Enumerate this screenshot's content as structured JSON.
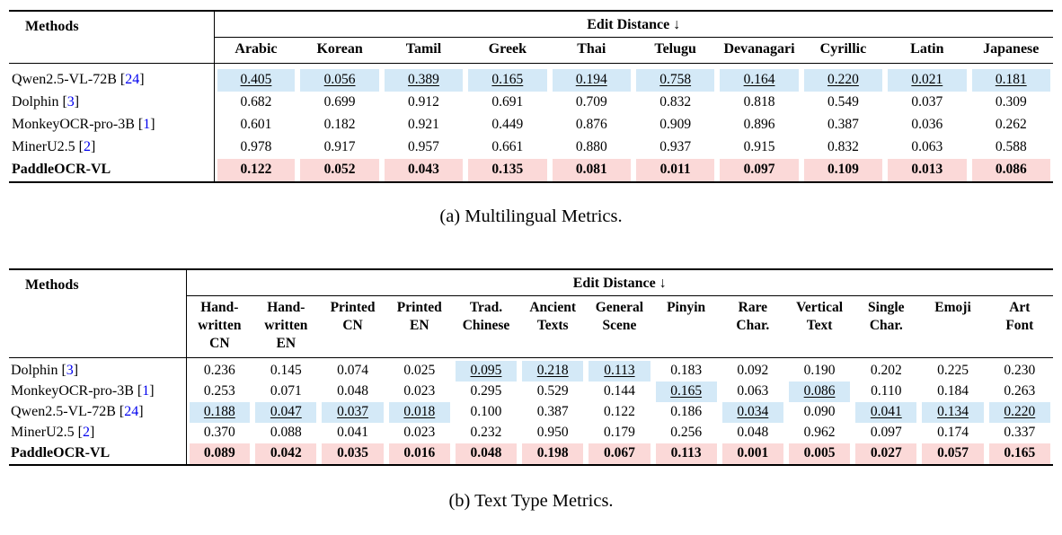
{
  "colors": {
    "best_row_bg": "#fbd9d8",
    "second_best_bg": "#d4e9f7",
    "citation_blue": "#0000ee",
    "rule_color": "#000000"
  },
  "tables": [
    {
      "name": "multilingual-metrics",
      "caption": "(a) Multilingual Metrics.",
      "methods_header": "Methods",
      "group_header": "Edit Distance ↓",
      "columns": [
        "Arabic",
        "Korean",
        "Tamil",
        "Greek",
        "Thai",
        "Telugu",
        "Devanagari",
        "Cyrillic",
        "Latin",
        "Japanese"
      ],
      "rows": [
        {
          "method": "Qwen2.5-VL-72B",
          "citation": "24",
          "is_best": false,
          "second_best_cols": "all",
          "values": [
            "0.405",
            "0.056",
            "0.389",
            "0.165",
            "0.194",
            "0.758",
            "0.164",
            "0.220",
            "0.021",
            "0.181"
          ]
        },
        {
          "method": "Dolphin",
          "citation": "3",
          "is_best": false,
          "second_best_cols": [],
          "values": [
            "0.682",
            "0.699",
            "0.912",
            "0.691",
            "0.709",
            "0.832",
            "0.818",
            "0.549",
            "0.037",
            "0.309"
          ]
        },
        {
          "method": "MonkeyOCR-pro-3B",
          "citation": "1",
          "is_best": false,
          "second_best_cols": [],
          "values": [
            "0.601",
            "0.182",
            "0.921",
            "0.449",
            "0.876",
            "0.909",
            "0.896",
            "0.387",
            "0.036",
            "0.262"
          ]
        },
        {
          "method": "MinerU2.5",
          "citation": "2",
          "is_best": false,
          "second_best_cols": [],
          "values": [
            "0.978",
            "0.917",
            "0.957",
            "0.661",
            "0.880",
            "0.937",
            "0.915",
            "0.832",
            "0.063",
            "0.588"
          ]
        },
        {
          "method": "PaddleOCR-VL",
          "citation": null,
          "is_best": true,
          "second_best_cols": [],
          "values": [
            "0.122",
            "0.052",
            "0.043",
            "0.135",
            "0.081",
            "0.011",
            "0.097",
            "0.109",
            "0.013",
            "0.086"
          ]
        }
      ]
    },
    {
      "name": "text-type-metrics",
      "caption": "(b) Text Type Metrics.",
      "methods_header": "Methods",
      "group_header": "Edit Distance ↓",
      "columns": [
        "Hand-\nwritten\nCN",
        "Hand-\nwritten\nEN",
        "Printed\nCN",
        "Printed\nEN",
        "Trad.\nChinese",
        "Ancient\nTexts",
        "General\nScene",
        "Pinyin",
        "Rare\nChar.",
        "Vertical\nText",
        "Single\nChar.",
        "Emoji",
        "Art\nFont"
      ],
      "rows": [
        {
          "method": "Dolphin",
          "citation": "3",
          "is_best": false,
          "second_best_cols": [
            4,
            5,
            6
          ],
          "values": [
            "0.236",
            "0.145",
            "0.074",
            "0.025",
            "0.095",
            "0.218",
            "0.113",
            "0.183",
            "0.092",
            "0.190",
            "0.202",
            "0.225",
            "0.230"
          ]
        },
        {
          "method": "MonkeyOCR-pro-3B",
          "citation": "1",
          "is_best": false,
          "second_best_cols": [
            7,
            9
          ],
          "values": [
            "0.253",
            "0.071",
            "0.048",
            "0.023",
            "0.295",
            "0.529",
            "0.144",
            "0.165",
            "0.063",
            "0.086",
            "0.110",
            "0.184",
            "0.263"
          ]
        },
        {
          "method": "Qwen2.5-VL-72B",
          "citation": "24",
          "is_best": false,
          "second_best_cols": [
            0,
            1,
            2,
            3,
            8,
            10,
            11,
            12
          ],
          "values": [
            "0.188",
            "0.047",
            "0.037",
            "0.018",
            "0.100",
            "0.387",
            "0.122",
            "0.186",
            "0.034",
            "0.090",
            "0.041",
            "0.134",
            "0.220"
          ]
        },
        {
          "method": "MinerU2.5",
          "citation": "2",
          "is_best": false,
          "second_best_cols": [],
          "values": [
            "0.370",
            "0.088",
            "0.041",
            "0.023",
            "0.232",
            "0.950",
            "0.179",
            "0.256",
            "0.048",
            "0.962",
            "0.097",
            "0.174",
            "0.337"
          ]
        },
        {
          "method": "PaddleOCR-VL",
          "citation": null,
          "is_best": true,
          "second_best_cols": [],
          "values": [
            "0.089",
            "0.042",
            "0.035",
            "0.016",
            "0.048",
            "0.198",
            "0.067",
            "0.113",
            "0.001",
            "0.005",
            "0.027",
            "0.057",
            "0.165"
          ]
        }
      ]
    }
  ]
}
